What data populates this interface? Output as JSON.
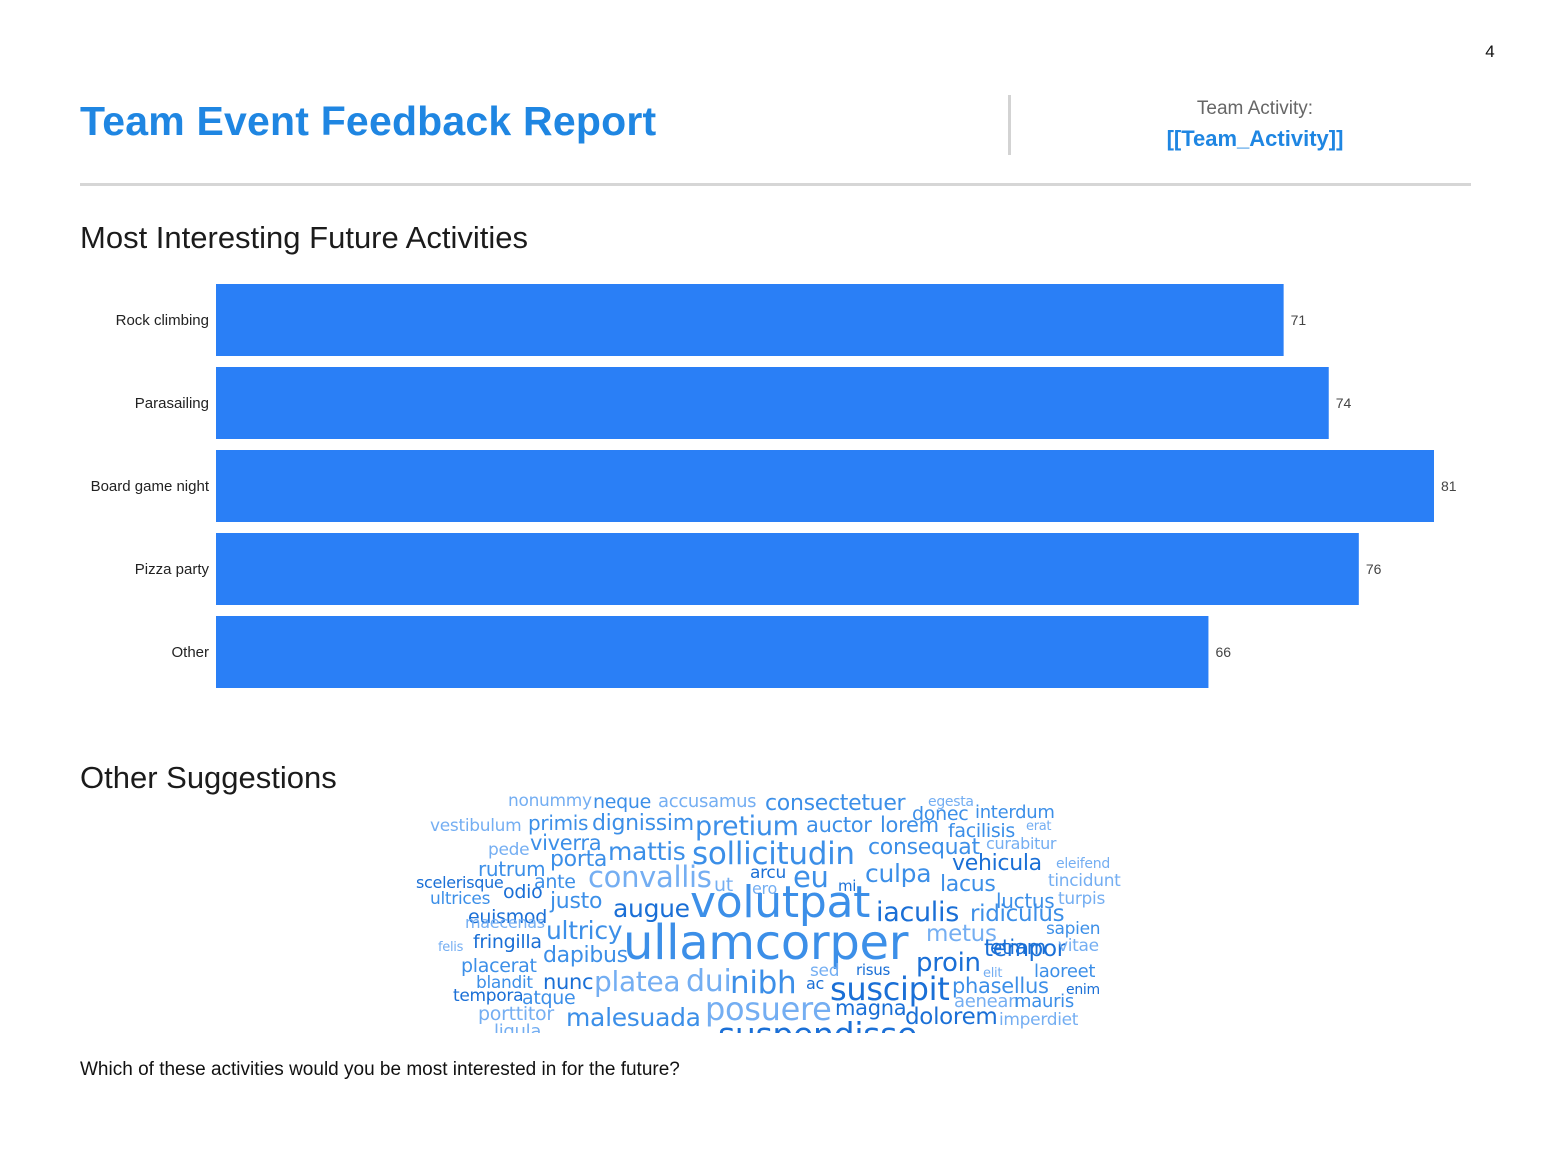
{
  "page_number": "4",
  "header": {
    "title": "Team Event Feedback Report",
    "activity_label": "Team Activity:",
    "activity_value": "[[Team_Activity]]"
  },
  "sections": {
    "future_activities": "Most Interesting Future Activities",
    "other_suggestions": "Other Suggestions"
  },
  "colors": {
    "accent": "#1f86e2",
    "bar": "#2a7ff6",
    "cloud_dark": "#1a6fd6",
    "cloud_mid": "#3c8fe8",
    "cloud_light": "#74aef2"
  },
  "chart_data": {
    "type": "bar",
    "orientation": "horizontal",
    "categories": [
      "Rock climbing",
      "Parasailing",
      "Board game night",
      "Pizza party",
      "Other"
    ],
    "values": [
      71,
      74,
      81,
      76,
      66
    ],
    "xlim": [
      0,
      81
    ],
    "grid": false,
    "data_labels": true
  },
  "word_cloud": [
    {
      "t": "nonummy",
      "c": "l"
    },
    {
      "t": "neque",
      "c": "m"
    },
    {
      "t": "accusamus",
      "c": "l"
    },
    {
      "t": "consectetuer",
      "c": "m"
    },
    {
      "t": "egesta",
      "c": "l"
    },
    {
      "t": "interdum",
      "c": "m"
    },
    {
      "t": "donec",
      "c": "m"
    },
    {
      "t": "vestibulum",
      "c": "l"
    },
    {
      "t": "primis",
      "c": "m"
    },
    {
      "t": "dignissim",
      "c": "m"
    },
    {
      "t": "pretium",
      "c": "m"
    },
    {
      "t": "auctor",
      "c": "m"
    },
    {
      "t": "lorem",
      "c": "m"
    },
    {
      "t": "facilisis",
      "c": "m"
    },
    {
      "t": "erat",
      "c": "l"
    },
    {
      "t": "pede",
      "c": "l"
    },
    {
      "t": "viverra",
      "c": "m"
    },
    {
      "t": "porta",
      "c": "m"
    },
    {
      "t": "mattis",
      "c": "m"
    },
    {
      "t": "sollicitudin",
      "c": "m"
    },
    {
      "t": "consequat",
      "c": "m"
    },
    {
      "t": "curabitur",
      "c": "l"
    },
    {
      "t": "rutrum",
      "c": "m"
    },
    {
      "t": "vehicula",
      "c": "d"
    },
    {
      "t": "eleifend",
      "c": "l"
    },
    {
      "t": "scelerisque",
      "c": "d"
    },
    {
      "t": "ante",
      "c": "m"
    },
    {
      "t": "convallis",
      "c": "l"
    },
    {
      "t": "ut",
      "c": "l"
    },
    {
      "t": "arcu",
      "c": "d"
    },
    {
      "t": "ero",
      "c": "l"
    },
    {
      "t": "eu",
      "c": "m"
    },
    {
      "t": "mi",
      "c": "d"
    },
    {
      "t": "culpa",
      "c": "m"
    },
    {
      "t": "lacus",
      "c": "m"
    },
    {
      "t": "tincidunt",
      "c": "l"
    },
    {
      "t": "ultrices",
      "c": "m"
    },
    {
      "t": "odio",
      "c": "d"
    },
    {
      "t": "justo",
      "c": "m"
    },
    {
      "t": "augue",
      "c": "d"
    },
    {
      "t": "volutpat",
      "c": "m"
    },
    {
      "t": "iaculis",
      "c": "d"
    },
    {
      "t": "luctus",
      "c": "m"
    },
    {
      "t": "turpis",
      "c": "l"
    },
    {
      "t": "euismod",
      "c": "d"
    },
    {
      "t": "ridiculus",
      "c": "m"
    },
    {
      "t": "maecenas",
      "c": "l"
    },
    {
      "t": "ultricy",
      "c": "m"
    },
    {
      "t": "ullamcorper",
      "c": "m"
    },
    {
      "t": "metus",
      "c": "l"
    },
    {
      "t": "sapien",
      "c": "m"
    },
    {
      "t": "felis",
      "c": "l"
    },
    {
      "t": "fringilla",
      "c": "d"
    },
    {
      "t": "etiam",
      "c": "d"
    },
    {
      "t": "tempor",
      "c": "d"
    },
    {
      "t": "vitae",
      "c": "l"
    },
    {
      "t": "placerat",
      "c": "m"
    },
    {
      "t": "dapibus",
      "c": "m"
    },
    {
      "t": "proin",
      "c": "d"
    },
    {
      "t": "sed",
      "c": "l"
    },
    {
      "t": "risus",
      "c": "d"
    },
    {
      "t": "elit",
      "c": "l"
    },
    {
      "t": "laoreet",
      "c": "m"
    },
    {
      "t": "blandit",
      "c": "m"
    },
    {
      "t": "nunc",
      "c": "d"
    },
    {
      "t": "platea",
      "c": "l"
    },
    {
      "t": "dui",
      "c": "l"
    },
    {
      "t": "nibh",
      "c": "m"
    },
    {
      "t": "ac",
      "c": "d"
    },
    {
      "t": "suscipit",
      "c": "d"
    },
    {
      "t": "phasellus",
      "c": "m"
    },
    {
      "t": "enim",
      "c": "d"
    },
    {
      "t": "tempora",
      "c": "d"
    },
    {
      "t": "atque",
      "c": "m"
    },
    {
      "t": "aenean",
      "c": "l"
    },
    {
      "t": "mauris",
      "c": "m"
    },
    {
      "t": "magna",
      "c": "d"
    },
    {
      "t": "porttitor",
      "c": "l"
    },
    {
      "t": "malesuada",
      "c": "m"
    },
    {
      "t": "posuere",
      "c": "l"
    },
    {
      "t": "dolorem",
      "c": "d"
    },
    {
      "t": "imperdiet",
      "c": "l"
    },
    {
      "t": "ligula",
      "c": "l"
    },
    {
      "t": "suspendisse",
      "c": "d"
    }
  ],
  "question": "Which of these activities would you be most interested in for the future?"
}
